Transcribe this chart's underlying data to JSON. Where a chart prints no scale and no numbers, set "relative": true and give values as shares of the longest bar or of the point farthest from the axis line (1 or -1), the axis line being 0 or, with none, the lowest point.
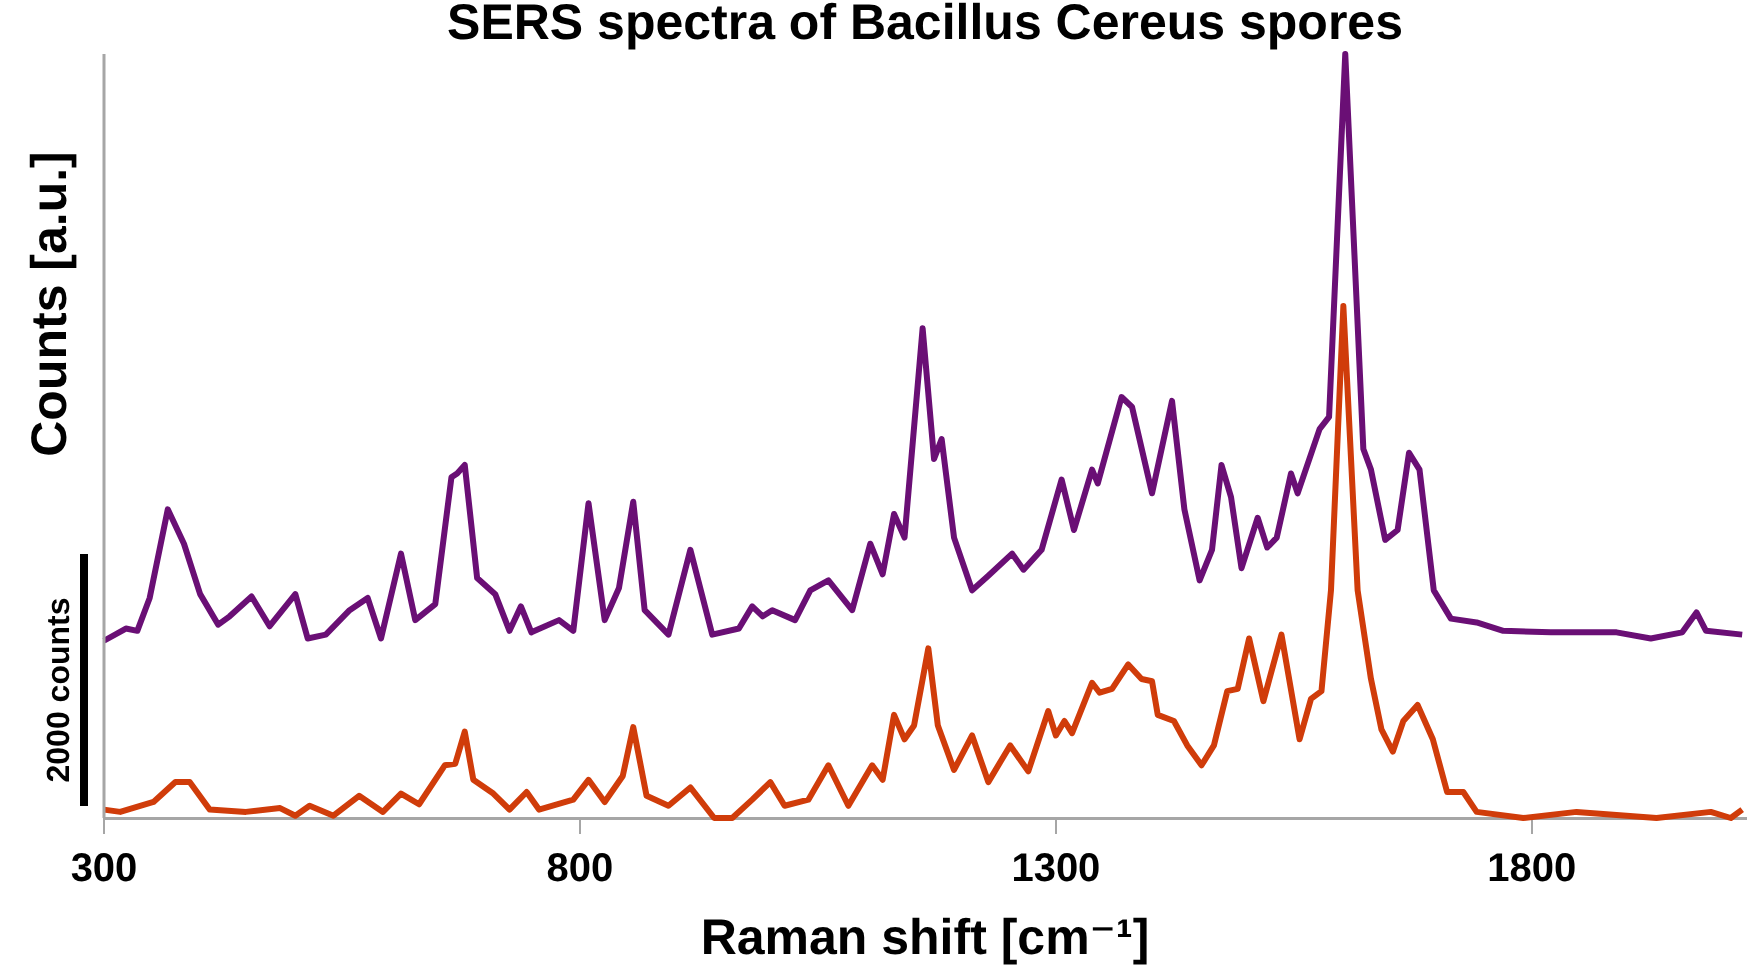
{
  "chart_data": {
    "type": "line",
    "title": "SERS spectra of Bacillus Cereus spores",
    "xlabel": "Raman shift [cm⁻¹]",
    "ylabel": "Counts [a.u.]",
    "annotations": [
      "2000 counts"
    ],
    "relative": true,
    "xlim": [
      300,
      2025
    ],
    "xticks": [
      300,
      800,
      1300,
      1800
    ],
    "grid": false,
    "legend": false,
    "marker": "none",
    "line_style": "solid",
    "series": [
      {
        "color": "#6a0f75",
        "x": [
          300,
          323,
          335,
          348,
          367,
          384,
          401,
          420,
          432,
          455,
          474,
          501,
          514,
          533,
          558,
          577,
          591,
          612,
          627,
          648,
          665,
          671,
          679,
          692,
          711,
          726,
          738,
          749,
          778,
          793,
          809,
          826,
          841,
          856,
          868,
          893,
          916,
          939,
          967,
          981,
          992,
          1002,
          1026,
          1042,
          1061,
          1086,
          1105,
          1118,
          1130,
          1141,
          1160,
          1172,
          1180,
          1193,
          1212,
          1229,
          1254,
          1266,
          1285,
          1306,
          1319,
          1338,
          1344,
          1369,
          1380,
          1401,
          1422,
          1435,
          1451,
          1464,
          1474,
          1484,
          1495,
          1512,
          1522,
          1532,
          1547,
          1554,
          1577,
          1587,
          1604,
          1623,
          1631,
          1646,
          1659,
          1671,
          1682,
          1697,
          1715,
          1742,
          1770,
          1820,
          1889,
          1925,
          1958,
          1973,
          1983,
          2021
        ],
        "values": [
          0.232,
          0.248,
          0.245,
          0.288,
          0.404,
          0.359,
          0.293,
          0.253,
          0.264,
          0.29,
          0.251,
          0.293,
          0.235,
          0.24,
          0.272,
          0.288,
          0.235,
          0.346,
          0.259,
          0.28,
          0.446,
          0.451,
          0.462,
          0.314,
          0.293,
          0.245,
          0.277,
          0.243,
          0.259,
          0.245,
          0.412,
          0.259,
          0.301,
          0.414,
          0.272,
          0.24,
          0.351,
          0.24,
          0.248,
          0.277,
          0.264,
          0.272,
          0.259,
          0.298,
          0.311,
          0.272,
          0.359,
          0.319,
          0.398,
          0.367,
          0.641,
          0.47,
          0.496,
          0.367,
          0.298,
          0.317,
          0.346,
          0.325,
          0.351,
          0.443,
          0.377,
          0.456,
          0.438,
          0.551,
          0.538,
          0.425,
          0.546,
          0.404,
          0.311,
          0.351,
          0.462,
          0.42,
          0.327,
          0.393,
          0.354,
          0.367,
          0.451,
          0.425,
          0.509,
          0.525,
          1.0,
          0.483,
          0.456,
          0.364,
          0.377,
          0.478,
          0.456,
          0.298,
          0.261,
          0.256,
          0.245,
          0.243,
          0.243,
          0.235,
          0.243,
          0.269,
          0.245,
          0.24
        ]
      },
      {
        "color": "#d03c0a",
        "x": [
          300,
          317,
          352,
          375,
          390,
          411,
          449,
          485,
          501,
          516,
          541,
          568,
          593,
          612,
          631,
          658,
          669,
          679,
          688,
          709,
          726,
          744,
          757,
          793,
          809,
          826,
          845,
          856,
          870,
          893,
          916,
          941,
          960,
          981,
          1000,
          1015,
          1040,
          1061,
          1082,
          1107,
          1118,
          1130,
          1141,
          1151,
          1166,
          1176,
          1193,
          1212,
          1229,
          1252,
          1271,
          1292,
          1300,
          1309,
          1317,
          1338,
          1346,
          1359,
          1376,
          1390,
          1401,
          1407,
          1424,
          1438,
          1453,
          1466,
          1480,
          1491,
          1503,
          1518,
          1537,
          1556,
          1568,
          1579,
          1589,
          1602,
          1617,
          1631,
          1642,
          1654,
          1665,
          1680,
          1696,
          1711,
          1728,
          1742,
          1791,
          1847,
          1931,
          1988,
          2009,
          2021
        ],
        "values": [
          0.011,
          0.008,
          0.021,
          0.047,
          0.047,
          0.011,
          0.008,
          0.013,
          0.003,
          0.016,
          0.003,
          0.029,
          0.008,
          0.032,
          0.018,
          0.069,
          0.071,
          0.113,
          0.05,
          0.032,
          0.011,
          0.034,
          0.011,
          0.024,
          0.05,
          0.021,
          0.055,
          0.119,
          0.029,
          0.016,
          0.04,
          0,
          0,
          0.024,
          0.047,
          0.016,
          0.024,
          0.069,
          0.016,
          0.069,
          0.05,
          0.135,
          0.103,
          0.121,
          0.222,
          0.121,
          0.063,
          0.108,
          0.047,
          0.095,
          0.061,
          0.14,
          0.108,
          0.127,
          0.111,
          0.177,
          0.164,
          0.169,
          0.201,
          0.182,
          0.179,
          0.135,
          0.127,
          0.095,
          0.069,
          0.095,
          0.166,
          0.169,
          0.235,
          0.153,
          0.24,
          0.103,
          0.156,
          0.166,
          0.298,
          0.67,
          0.298,
          0.182,
          0.116,
          0.087,
          0.127,
          0.148,
          0.103,
          0.034,
          0.034,
          0.008,
          0,
          0.008,
          0,
          0.008,
          0,
          0.011
        ]
      }
    ]
  }
}
